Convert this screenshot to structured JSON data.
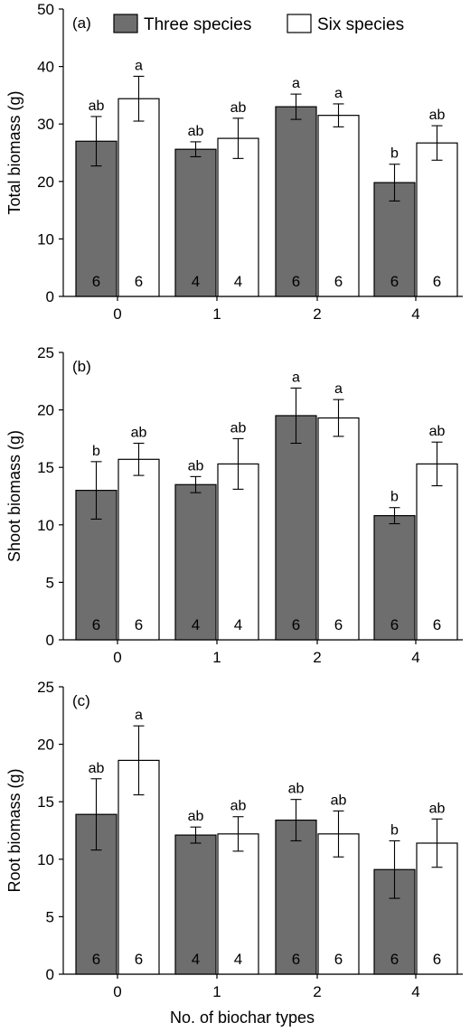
{
  "legend": [
    {
      "label": "Three species",
      "color": "#6e6e6e"
    },
    {
      "label": "Six species",
      "color": "#ffffff"
    }
  ],
  "xlabel": "No. of biochar types",
  "chart_data": [
    {
      "type": "bar",
      "panel_label": "(a)",
      "ylabel": "Total biomass (g)",
      "ylim": [
        0,
        50
      ],
      "yticks": [
        0,
        10,
        20,
        30,
        40,
        50
      ],
      "categories": [
        "0",
        "1",
        "2",
        "4"
      ],
      "series": [
        {
          "name": "Three species",
          "values": [
            27.0,
            25.6,
            33.0,
            19.8
          ],
          "errors": [
            4.3,
            1.3,
            2.2,
            3.2
          ],
          "sig": [
            "ab",
            "ab",
            "a",
            "b"
          ],
          "n": [
            "6",
            "4",
            "6",
            "6"
          ]
        },
        {
          "name": "Six species",
          "values": [
            34.4,
            27.5,
            31.5,
            26.7
          ],
          "errors": [
            3.9,
            3.5,
            2.0,
            3.0
          ],
          "sig": [
            "a",
            "ab",
            "a",
            "ab"
          ],
          "n": [
            "6",
            "4",
            "6",
            "6"
          ]
        }
      ]
    },
    {
      "type": "bar",
      "panel_label": "(b)",
      "ylabel": "Shoot biomass (g)",
      "ylim": [
        0,
        25
      ],
      "yticks": [
        0,
        5,
        10,
        15,
        20,
        25
      ],
      "categories": [
        "0",
        "1",
        "2",
        "4"
      ],
      "series": [
        {
          "name": "Three species",
          "values": [
            13.0,
            13.5,
            19.5,
            10.8
          ],
          "errors": [
            2.5,
            0.7,
            2.4,
            0.7
          ],
          "sig": [
            "b",
            "ab",
            "a",
            "b"
          ],
          "n": [
            "6",
            "4",
            "6",
            "6"
          ]
        },
        {
          "name": "Six species",
          "values": [
            15.7,
            15.3,
            19.3,
            15.3
          ],
          "errors": [
            1.4,
            2.2,
            1.6,
            1.9
          ],
          "sig": [
            "ab",
            "ab",
            "a",
            "ab"
          ],
          "n": [
            "6",
            "4",
            "6",
            "6"
          ]
        }
      ]
    },
    {
      "type": "bar",
      "panel_label": "(c)",
      "ylabel": "Root biomass (g)",
      "ylim": [
        0,
        25
      ],
      "yticks": [
        0,
        5,
        10,
        15,
        20,
        25
      ],
      "categories": [
        "0",
        "1",
        "2",
        "4"
      ],
      "series": [
        {
          "name": "Three species",
          "values": [
            13.9,
            12.1,
            13.4,
            9.1
          ],
          "errors": [
            3.1,
            0.7,
            1.8,
            2.5
          ],
          "sig": [
            "ab",
            "ab",
            "ab",
            "b"
          ],
          "n": [
            "6",
            "4",
            "6",
            "6"
          ]
        },
        {
          "name": "Six species",
          "values": [
            18.6,
            12.2,
            12.2,
            11.4
          ],
          "errors": [
            3.0,
            1.5,
            2.0,
            2.1
          ],
          "sig": [
            "a",
            "ab",
            "ab",
            "ab"
          ],
          "n": [
            "6",
            "4",
            "6",
            "6"
          ]
        }
      ]
    }
  ]
}
